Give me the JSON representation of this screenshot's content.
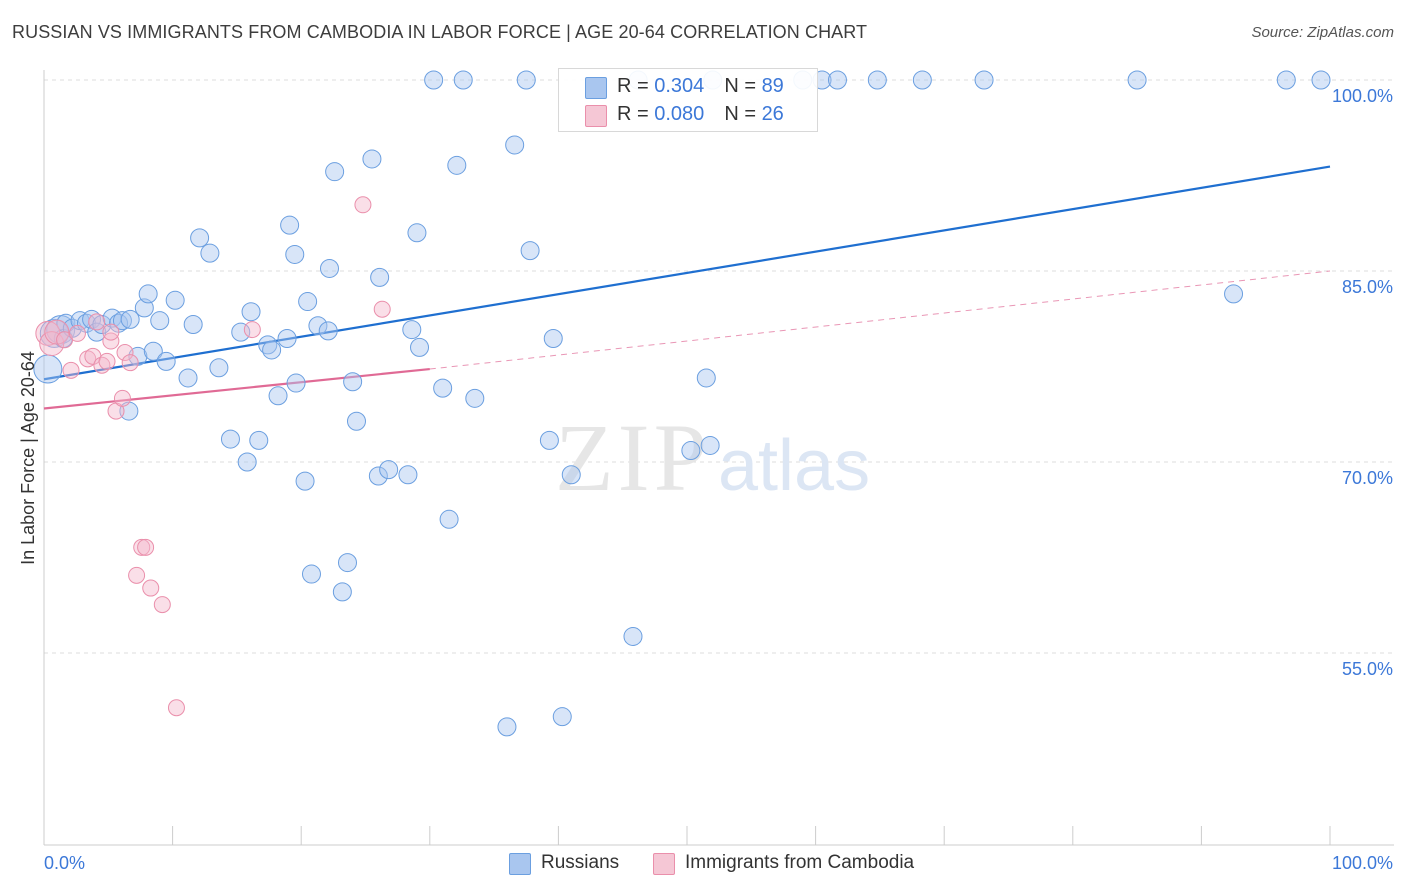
{
  "title": "RUSSIAN VS IMMIGRANTS FROM CAMBODIA IN LABOR FORCE | AGE 20-64 CORRELATION CHART",
  "source": "Source: ZipAtlas.com",
  "watermark": {
    "zip": "ZIP",
    "atlas": "atlas"
  },
  "colors": {
    "russians_fill": "#a9c6ef",
    "russians_stroke": "#6b9fe0",
    "russians_line": "#1f6fd0",
    "cambodia_fill": "#f5b8cb",
    "cambodia_stroke": "#ea8fab",
    "cambodia_line": "#e06a95",
    "axis_label": "#3c78d8",
    "grid": "#dddddd"
  },
  "legend": {
    "rows": [
      {
        "r_label": "R = ",
        "r_value": "0.304",
        "n_label": "N = ",
        "n_value": "89"
      },
      {
        "r_label": "R = ",
        "r_value": "0.080",
        "n_label": "N = ",
        "n_value": "26"
      }
    ]
  },
  "bottom_legend": {
    "russians": "Russians",
    "cambodia": "Immigrants from Cambodia"
  },
  "chart_data": {
    "type": "scatter",
    "xlabel": "",
    "ylabel": "In Labor Force | Age 20-64",
    "xlim": [
      0,
      100
    ],
    "ylim": [
      39,
      101.5
    ],
    "x_tick_labels": {
      "left": "0.0%",
      "right": "100.0%"
    },
    "y_ticks": [
      {
        "value": 100,
        "label": "100.0%"
      },
      {
        "value": 85,
        "label": "85.0%"
      },
      {
        "value": 70,
        "label": "70.0%"
      },
      {
        "value": 55,
        "label": "55.0%"
      }
    ],
    "grid": "horizontal dashed",
    "legend_position": "top-center",
    "series": [
      {
        "name": "Russians",
        "trend": {
          "x": [
            0,
            100
          ],
          "y": [
            76.5,
            93.2
          ],
          "style": "solid"
        },
        "points": [
          [
            0.3,
            77.3
          ],
          [
            0.8,
            80.1
          ],
          [
            1.3,
            80.4
          ],
          [
            1.5,
            79.7
          ],
          [
            1.7,
            80.9
          ],
          [
            2.2,
            80.5
          ],
          [
            2.8,
            81.1
          ],
          [
            3.3,
            80.9
          ],
          [
            3.7,
            81.2
          ],
          [
            4.1,
            80.2
          ],
          [
            4.5,
            80.8
          ],
          [
            5.3,
            81.3
          ],
          [
            5.8,
            80.9
          ],
          [
            6.1,
            81.1
          ],
          [
            6.7,
            81.2
          ],
          [
            7.3,
            78.3
          ],
          [
            7.8,
            82.1
          ],
          [
            8.1,
            83.2
          ],
          [
            8.5,
            78.7
          ],
          [
            9.0,
            81.1
          ],
          [
            9.5,
            77.9
          ],
          [
            10.2,
            82.7
          ],
          [
            11.2,
            76.6
          ],
          [
            11.6,
            80.8
          ],
          [
            12.1,
            87.6
          ],
          [
            12.9,
            86.4
          ],
          [
            13.6,
            77.4
          ],
          [
            14.5,
            71.8
          ],
          [
            15.3,
            80.2
          ],
          [
            16.1,
            81.8
          ],
          [
            16.7,
            71.7
          ],
          [
            17.4,
            79.2
          ],
          [
            17.7,
            78.8
          ],
          [
            18.2,
            75.2
          ],
          [
            18.9,
            79.7
          ],
          [
            19.1,
            88.6
          ],
          [
            19.6,
            76.2
          ],
          [
            19.5,
            86.3
          ],
          [
            20.3,
            68.5
          ],
          [
            20.5,
            82.6
          ],
          [
            20.8,
            61.2
          ],
          [
            21.3,
            80.7
          ],
          [
            22.1,
            80.3
          ],
          [
            22.2,
            85.2
          ],
          [
            22.6,
            92.8
          ],
          [
            23.2,
            59.8
          ],
          [
            23.6,
            62.1
          ],
          [
            24.0,
            76.3
          ],
          [
            24.3,
            73.2
          ],
          [
            25.5,
            93.8
          ],
          [
            26.0,
            68.9
          ],
          [
            26.1,
            84.5
          ],
          [
            26.8,
            69.4
          ],
          [
            28.3,
            69.0
          ],
          [
            28.6,
            80.4
          ],
          [
            29.0,
            88.0
          ],
          [
            29.2,
            79.0
          ],
          [
            30.3,
            100.0
          ],
          [
            31.0,
            75.8
          ],
          [
            31.5,
            65.5
          ],
          [
            32.1,
            93.3
          ],
          [
            32.6,
            100.0
          ],
          [
            33.5,
            75.0
          ],
          [
            36.0,
            49.2
          ],
          [
            36.6,
            94.9
          ],
          [
            37.5,
            100.0
          ],
          [
            37.8,
            86.6
          ],
          [
            39.3,
            71.7
          ],
          [
            39.6,
            79.7
          ],
          [
            40.3,
            50.0
          ],
          [
            41.0,
            69.0
          ],
          [
            45.8,
            56.3
          ],
          [
            46.2,
            100.0
          ],
          [
            50.3,
            70.9
          ],
          [
            51.5,
            76.6
          ],
          [
            51.8,
            71.3
          ],
          [
            52.0,
            100.0
          ],
          [
            59.0,
            100.0
          ],
          [
            60.5,
            100.0
          ],
          [
            61.7,
            100.0
          ],
          [
            64.8,
            100.0
          ],
          [
            68.3,
            100.0
          ],
          [
            73.1,
            100.0
          ],
          [
            85.0,
            100.0
          ],
          [
            92.5,
            83.2
          ],
          [
            96.6,
            100.0
          ],
          [
            99.3,
            100.0
          ],
          [
            15.8,
            70.0
          ],
          [
            6.6,
            74.0
          ]
        ],
        "point_sizes_note": "a few points near x=0 are larger"
      },
      {
        "name": "Immigrants from Cambodia",
        "trend_solid": {
          "x": [
            0,
            30
          ],
          "y": [
            74.2,
            77.3
          ]
        },
        "trend_dashed": {
          "x": [
            30,
            100
          ],
          "y": [
            77.3,
            85.0
          ]
        },
        "points": [
          [
            0.3,
            80.1
          ],
          [
            0.6,
            79.3
          ],
          [
            1.0,
            80.2
          ],
          [
            1.6,
            79.6
          ],
          [
            2.1,
            77.2
          ],
          [
            2.6,
            80.1
          ],
          [
            3.4,
            78.1
          ],
          [
            3.8,
            78.3
          ],
          [
            4.1,
            81.0
          ],
          [
            4.5,
            77.6
          ],
          [
            4.9,
            77.9
          ],
          [
            5.2,
            79.5
          ],
          [
            5.6,
            74.0
          ],
          [
            5.2,
            80.2
          ],
          [
            6.1,
            75.0
          ],
          [
            6.3,
            78.6
          ],
          [
            6.7,
            77.8
          ],
          [
            7.2,
            61.1
          ],
          [
            7.6,
            63.3
          ],
          [
            7.9,
            63.3
          ],
          [
            8.3,
            60.1
          ],
          [
            9.2,
            58.8
          ],
          [
            10.3,
            50.7
          ],
          [
            16.2,
            80.4
          ],
          [
            24.8,
            90.2
          ],
          [
            26.3,
            82.0
          ]
        ]
      }
    ]
  }
}
